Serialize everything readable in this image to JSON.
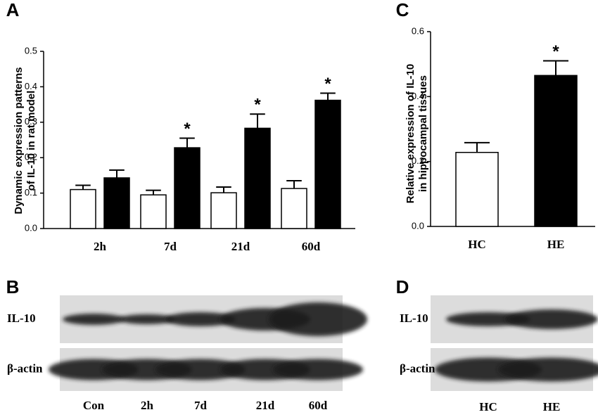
{
  "chart_data": [
    {
      "type": "bar",
      "panel_label": "A",
      "ylabel": [
        "Dynamic expression patterns",
        "of IL-10 in rat model"
      ],
      "categories": [
        "2h",
        "7d",
        "21d",
        "60d"
      ],
      "series": [
        {
          "color": "#ffffff",
          "values": [
            0.11,
            0.095,
            0.101,
            0.113
          ],
          "errors": [
            0.012,
            0.013,
            0.016,
            0.022
          ]
        },
        {
          "color": "#000000",
          "values": [
            0.143,
            0.228,
            0.283,
            0.362
          ],
          "errors": [
            0.022,
            0.027,
            0.04,
            0.02
          ],
          "significance": [
            null,
            "*",
            "*",
            "*"
          ]
        }
      ],
      "ylim": [
        0,
        0.5
      ],
      "yticks": [
        {
          "value": 0,
          "label": "0.0"
        },
        0.1,
        0.2,
        0.3,
        0.4,
        0.5
      ]
    },
    {
      "type": "bar",
      "panel_label": "C",
      "ylabel": [
        "Relative expression of IL-10",
        "in hippocampal tissues"
      ],
      "categories": [
        "HC",
        "HE"
      ],
      "values": [
        0.228,
        0.465
      ],
      "errors": [
        0.03,
        0.045
      ],
      "colors": [
        "#ffffff",
        "#000000"
      ],
      "significance": [
        null,
        "*"
      ],
      "ylim": [
        0,
        0.6
      ],
      "yticks": [
        {
          "value": 0,
          "label": "0.0"
        },
        0.2,
        0.4,
        0.6
      ]
    }
  ],
  "blots": [
    {
      "panel_label": "B",
      "rows": [
        "IL-10",
        "β-actin"
      ],
      "lanes": [
        "Con",
        "2h",
        "7d",
        "21d",
        "60d"
      ]
    },
    {
      "panel_label": "D",
      "rows": [
        "IL-10",
        "β-actin"
      ],
      "lanes": [
        "HC",
        "HE"
      ]
    }
  ]
}
